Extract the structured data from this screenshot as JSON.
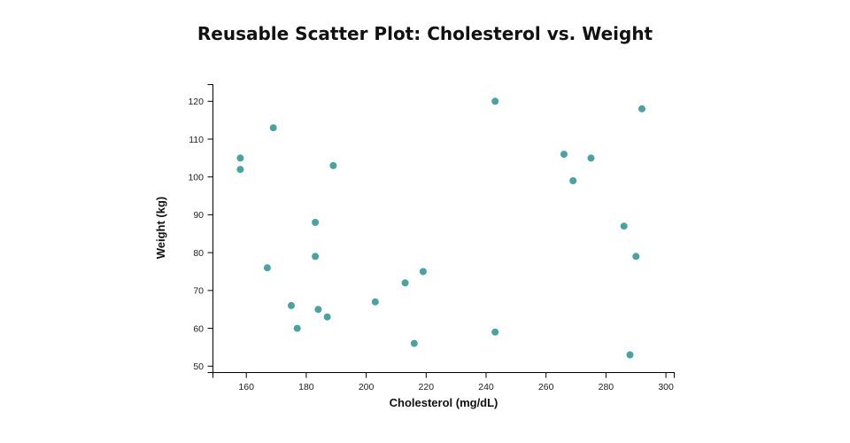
{
  "page": {
    "background_color": "#ffffff"
  },
  "chart_data": {
    "type": "scatter",
    "title": "Reusable Scatter Plot: Cholesterol vs. Weight",
    "xlabel": "Cholesterol (mg/dL)",
    "ylabel": "Weight (kg)",
    "x_ticks": [
      160,
      180,
      200,
      220,
      240,
      260,
      280,
      300
    ],
    "y_ticks": [
      50,
      60,
      70,
      80,
      90,
      100,
      110,
      120
    ],
    "xlim": [
      148.7,
      302.9
    ],
    "ylim": [
      48.3,
      124.5
    ],
    "grid": false,
    "legend": null,
    "marker_color": "#48a3a1",
    "axis_color": "#000000",
    "tick_label_color": "#222222",
    "title_color": "#111111",
    "points": [
      {
        "cholesterol": 158,
        "weight": 105
      },
      {
        "cholesterol": 158,
        "weight": 102
      },
      {
        "cholesterol": 169,
        "weight": 113
      },
      {
        "cholesterol": 167,
        "weight": 76
      },
      {
        "cholesterol": 175,
        "weight": 66
      },
      {
        "cholesterol": 177,
        "weight": 60
      },
      {
        "cholesterol": 183,
        "weight": 88
      },
      {
        "cholesterol": 183,
        "weight": 79
      },
      {
        "cholesterol": 184,
        "weight": 65
      },
      {
        "cholesterol": 187,
        "weight": 63
      },
      {
        "cholesterol": 189,
        "weight": 103
      },
      {
        "cholesterol": 203,
        "weight": 67
      },
      {
        "cholesterol": 213,
        "weight": 72
      },
      {
        "cholesterol": 216,
        "weight": 56
      },
      {
        "cholesterol": 219,
        "weight": 75
      },
      {
        "cholesterol": 243,
        "weight": 120
      },
      {
        "cholesterol": 243,
        "weight": 59
      },
      {
        "cholesterol": 266,
        "weight": 106
      },
      {
        "cholesterol": 269,
        "weight": 99
      },
      {
        "cholesterol": 275,
        "weight": 105
      },
      {
        "cholesterol": 286,
        "weight": 87
      },
      {
        "cholesterol": 288,
        "weight": 53
      },
      {
        "cholesterol": 290,
        "weight": 79
      },
      {
        "cholesterol": 292,
        "weight": 118
      }
    ]
  }
}
